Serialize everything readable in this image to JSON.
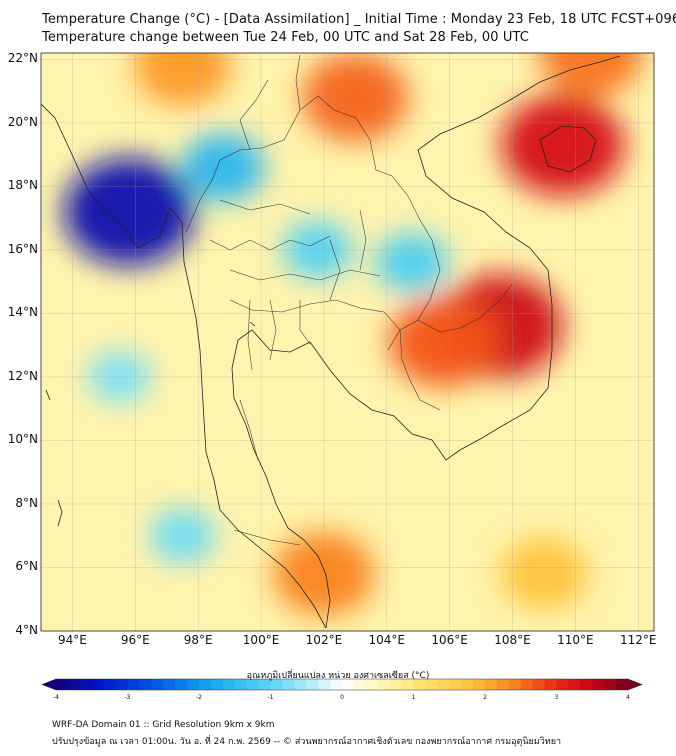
{
  "titles": {
    "line1": "Temperature Change (°C) - [Data Assimilation] _ Initial Time : Monday 23 Feb, 18 UTC FCST+096",
    "line2": "Temperature change between Tue 24 Feb, 00 UTC and Sat 28 Feb, 00 UTC"
  },
  "axes": {
    "lat_labels": [
      "22°N",
      "20°N",
      "18°N",
      "16°N",
      "14°N",
      "12°N",
      "10°N",
      "8°N",
      "6°N",
      "4°N"
    ],
    "lon_labels": [
      "94°E",
      "96°E",
      "98°E",
      "100°E",
      "102°E",
      "104°E",
      "106°E",
      "108°E",
      "110°E",
      "112°E"
    ],
    "lat_values": [
      22,
      20,
      18,
      16,
      14,
      12,
      10,
      8,
      6,
      4
    ],
    "lon_values": [
      94,
      96,
      98,
      100,
      102,
      104,
      106,
      108,
      110,
      112
    ],
    "lat_range": [
      4,
      22.2
    ],
    "lon_range": [
      93,
      112.5
    ]
  },
  "colorbar": {
    "title": "อุณหภูมิเปลี่ยนแปลง หน่วย องศาเซลเซียส (°C)",
    "tick_labels": [
      "-4",
      "-3",
      "-2",
      "-1",
      "0",
      "1",
      "2",
      "3",
      "4"
    ],
    "tick_values": [
      -4,
      -3,
      -2,
      -1,
      0,
      1,
      2,
      3,
      4
    ],
    "range": [
      -4,
      4
    ]
  },
  "footer": {
    "line1": "WRF-DA Domain 01 :: Grid Resolution 9km x 9km",
    "line2": "ปรับปรุงข้อมูล ณ เวลา 01:00น. วัน อ. ที่ 24 ก.พ. 2569 -- © ส่วนพยากรณ์อากาศเชิงตัวเลข กองพยากรณ์อากาศ กรมอุตุนิยมวิทยา"
  },
  "map_field": {
    "variable": "temperature change",
    "units": "°C",
    "features": [
      {
        "label": "cold core Myanmar",
        "lon": 95.8,
        "lat": 17.2,
        "value": -3.6
      },
      {
        "label": "cool northern Thailand",
        "lon": 98.8,
        "lat": 18.6,
        "value": -1.6
      },
      {
        "label": "cool central Thailand",
        "lon": 101.8,
        "lat": 16.0,
        "value": -1.1
      },
      {
        "label": "cool NE Thailand",
        "lon": 104.8,
        "lat": 15.6,
        "value": -1.2
      },
      {
        "label": "cool western sea",
        "lon": 95.5,
        "lat": 12.0,
        "value": -0.8
      },
      {
        "label": "cool south",
        "lon": 97.5,
        "lat": 7.0,
        "value": -0.9
      },
      {
        "label": "warm Cambodia/Vietnam",
        "lon": 107.6,
        "lat": 13.6,
        "value": 3.4
      },
      {
        "label": "warm Cambodia west",
        "lon": 105.8,
        "lat": 13.1,
        "value": 2.7
      },
      {
        "label": "warm Hainan",
        "lon": 109.6,
        "lat": 19.3,
        "value": 3.3
      },
      {
        "label": "warm Laos north",
        "lon": 103.0,
        "lat": 20.8,
        "value": 2.6
      },
      {
        "label": "warm Gulf of Thailand coast",
        "lon": 102.0,
        "lat": 5.8,
        "value": 2.4
      },
      {
        "label": "warm SE sea",
        "lon": 109.0,
        "lat": 5.8,
        "value": 1.8
      },
      {
        "label": "warm top edge",
        "lon": 110.5,
        "lat": 22.2,
        "value": 2.5
      },
      {
        "label": "warm Myanmar north",
        "lon": 97.5,
        "lat": 21.8,
        "value": 2.2
      }
    ]
  }
}
